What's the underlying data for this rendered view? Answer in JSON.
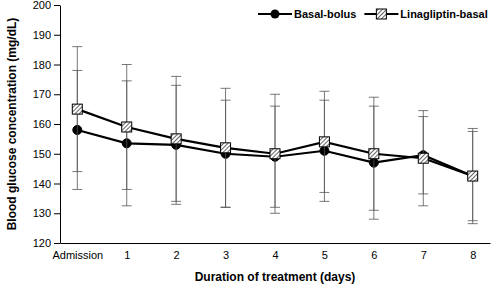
{
  "chart_data": {
    "type": "line",
    "x_label": "Duration of treatment (days)",
    "y_label": "Blood glucose concentration (mg/dL)",
    "categories": [
      "Admission",
      "1",
      "2",
      "3",
      "4",
      "5",
      "6",
      "7",
      "8"
    ],
    "series": [
      {
        "name": "Basal-bolus",
        "color": "#000000",
        "marker": "circle",
        "line_style": "solid",
        "values": [
          158,
          153.5,
          153,
          150,
          149,
          151,
          147,
          149.5,
          142.5
        ],
        "error": [
          20,
          21,
          20,
          18,
          17,
          17,
          19,
          13,
          15
        ]
      },
      {
        "name": "Linagliptin-basal",
        "color": "#000000",
        "marker": "square",
        "line_style": "solid",
        "values": [
          165,
          159,
          155,
          152,
          150,
          154,
          150,
          148.5,
          142.5
        ],
        "error": [
          21,
          21,
          21,
          20,
          20,
          17,
          19,
          16,
          16
        ]
      }
    ],
    "ylim": [
      120,
      200
    ],
    "yticks": [
      120,
      130,
      140,
      150,
      160,
      170,
      180,
      190,
      200
    ],
    "grid": false,
    "legend": "top"
  }
}
